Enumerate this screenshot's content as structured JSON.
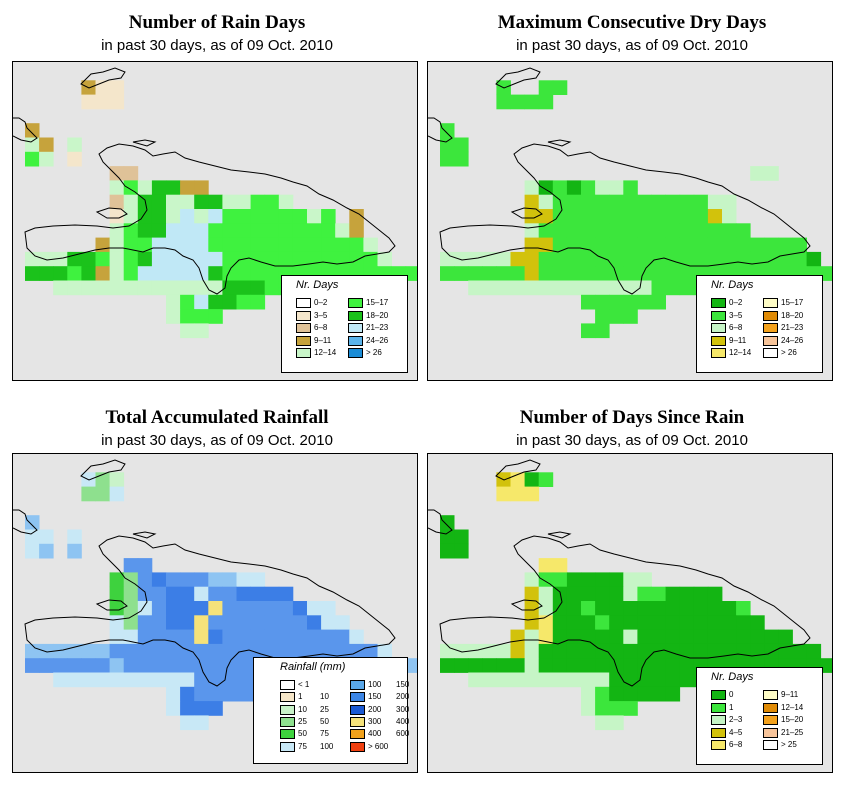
{
  "colors": {
    "background": "#e5e5e5",
    "coast": "#000000"
  },
  "panels": [
    {
      "id": "rain-days",
      "title": "Number of Rain Days",
      "subtitle": "in past 30 days, as of  09 Oct. 2010",
      "legend": {
        "title": "Nr. Days",
        "left": [
          {
            "label": "0–2",
            "color": "#ffffff"
          },
          {
            "label": "3–5",
            "color": "#f4e6cb"
          },
          {
            "label": "6–8",
            "color": "#dfc298"
          },
          {
            "label": "9–11",
            "color": "#c6a33c"
          },
          {
            "label": "12–14",
            "color": "#c9f6c9"
          }
        ],
        "right": [
          {
            "label": "15–17",
            "color": "#3ff23f"
          },
          {
            "label": "18–20",
            "color": "#1bc21b"
          },
          {
            "label": "21–23",
            "color": "#c0e8f6"
          },
          {
            "label": "24–26",
            "color": "#5ab4ec"
          },
          {
            "label": "> 26",
            "color": "#1a8cd6"
          }
        ]
      },
      "palette": {
        "a": "#1bc21b",
        "b": "#3ff23f",
        "c": "#c9f6c9",
        "d": "#c6a33c",
        "e": "#dfc298",
        "f": "#f4e6cb",
        "g": "#c0e8f6"
      }
    },
    {
      "id": "max-dry-days",
      "title": "Maximum Consecutive Dry Days",
      "subtitle": "in past 30 days, as of  09 Oct. 2010",
      "legend": {
        "title": "Nr. Days",
        "left": [
          {
            "label": "0–2",
            "color": "#13b513"
          },
          {
            "label": "3–5",
            "color": "#3ce63c"
          },
          {
            "label": "6–8",
            "color": "#c6f5c6"
          },
          {
            "label": "9–11",
            "color": "#d2c20c"
          },
          {
            "label": "12–14",
            "color": "#f6e86a"
          }
        ],
        "right": [
          {
            "label": "15–17",
            "color": "#fefcc6"
          },
          {
            "label": "18–20",
            "color": "#e08b06"
          },
          {
            "label": "21–23",
            "color": "#f4a21c"
          },
          {
            "label": "24–26",
            "color": "#f7c49a"
          },
          {
            "label": "> 26",
            "color": "#ffffff"
          }
        ]
      },
      "palette": {
        "a": "#3ce63c",
        "b": "#13b513",
        "c": "#c6f5c6",
        "d": "#d2c20c",
        "e": "#f6e86a"
      }
    },
    {
      "id": "total-rainfall",
      "title": "Total Accumulated Rainfall",
      "subtitle": "in past 30 days, as of  09 Oct. 2010",
      "legend": {
        "title": "Rainfall (mm)",
        "left": [
          {
            "label": "< 1",
            "label2": "",
            "color": "#ffffff"
          },
          {
            "label": "1",
            "label2": "10",
            "color": "#f6e6c8"
          },
          {
            "label": "10",
            "label2": "25",
            "color": "#c9f3c9"
          },
          {
            "label": "25",
            "label2": "50",
            "color": "#8ee08e"
          },
          {
            "label": "50",
            "label2": "75",
            "color": "#3ed23e"
          },
          {
            "label": "75",
            "label2": "100",
            "color": "#c8e8f6"
          }
        ],
        "right": [
          {
            "label": "100",
            "label2": "150",
            "color": "#5aa8ea"
          },
          {
            "label": "150",
            "label2": "200",
            "color": "#3c86e6"
          },
          {
            "label": "200",
            "label2": "300",
            "color": "#1b5ad4"
          },
          {
            "label": "300",
            "label2": "400",
            "color": "#f5e27a"
          },
          {
            "label": "400",
            "label2": "600",
            "color": "#f1a21c"
          },
          {
            "label": "> 600",
            "label2": "",
            "color": "#f04010"
          }
        ]
      },
      "palette": {
        "a": "#5a96ec",
        "b": "#3c7ee6",
        "c": "#c8e8f6",
        "d": "#8ec4f2",
        "e": "#3ed23e",
        "f": "#8ee08e",
        "g": "#f5e27a",
        "h": "#c9f3c9"
      }
    },
    {
      "id": "days-since-rain",
      "title": "Number of Days Since Rain",
      "subtitle": "in past 30 days, as of  09 Oct. 2010",
      "legend": {
        "title": "Nr. Days",
        "left": [
          {
            "label": "0",
            "color": "#13b513"
          },
          {
            "label": "1",
            "color": "#3ce63c"
          },
          {
            "label": "2–3",
            "color": "#c6f5c6"
          },
          {
            "label": "4–5",
            "color": "#d2c20c"
          },
          {
            "label": "6–8",
            "color": "#f6e86a"
          }
        ],
        "right": [
          {
            "label": "9–11",
            "color": "#fefcc6"
          },
          {
            "label": "12–14",
            "color": "#e08b06"
          },
          {
            "label": "15–20",
            "color": "#f4a21c"
          },
          {
            "label": "21–25",
            "color": "#f7c49a"
          },
          {
            "label": "> 25",
            "color": "#ffffff"
          }
        ]
      },
      "palette": {
        "a": "#13b513",
        "b": "#3ce63c",
        "c": "#c6f5c6",
        "d": "#d2c20c",
        "e": "#f6e86a"
      }
    }
  ]
}
